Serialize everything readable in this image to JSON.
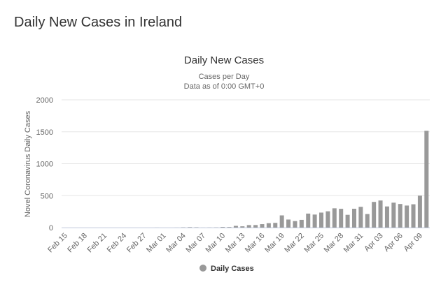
{
  "page_title": "Daily New Cases in Ireland",
  "chart_data": {
    "type": "bar",
    "title": "Daily New Cases",
    "subtitle": [
      "Cases per Day",
      "Data as of 0:00 GMT+0"
    ],
    "ylabel": "Novel Coronavirus Daily Cases",
    "categories": [
      "Feb 15",
      null,
      null,
      "Feb 18",
      null,
      null,
      "Feb 21",
      null,
      null,
      "Feb 24",
      null,
      null,
      "Feb 27",
      null,
      null,
      "Mar 01",
      null,
      null,
      "Mar 04",
      null,
      null,
      "Mar 07",
      null,
      null,
      "Mar 10",
      null,
      null,
      "Mar 13",
      null,
      null,
      "Mar 16",
      null,
      null,
      "Mar 19",
      null,
      null,
      "Mar 22",
      null,
      null,
      "Mar 25",
      null,
      null,
      "Mar 28",
      null,
      null,
      "Mar 31",
      null,
      null,
      "Apr 03",
      null,
      null,
      "Apr 06",
      null,
      null,
      "Apr 09",
      null
    ],
    "series": [
      {
        "name": "Daily Cases",
        "color": "#999999",
        "values": [
          0,
          0,
          0,
          0,
          0,
          0,
          0,
          0,
          0,
          0,
          0,
          0,
          0,
          0,
          1,
          0,
          0,
          1,
          4,
          7,
          5,
          1,
          2,
          3,
          10,
          9,
          27,
          20,
          39,
          40,
          54,
          69,
          74,
          191,
          126,
          102,
          121,
          219,
          204,
          235,
          255,
          302,
          294,
          200,
          295,
          325,
          212,
          402,
          424,
          331,
          390,
          370,
          345,
          365,
          500,
          1515
        ]
      }
    ],
    "ylim": [
      0,
      2000
    ],
    "yticks": [
      0,
      500,
      1000,
      1500,
      2000
    ],
    "grid": true,
    "legend": "bottom"
  }
}
